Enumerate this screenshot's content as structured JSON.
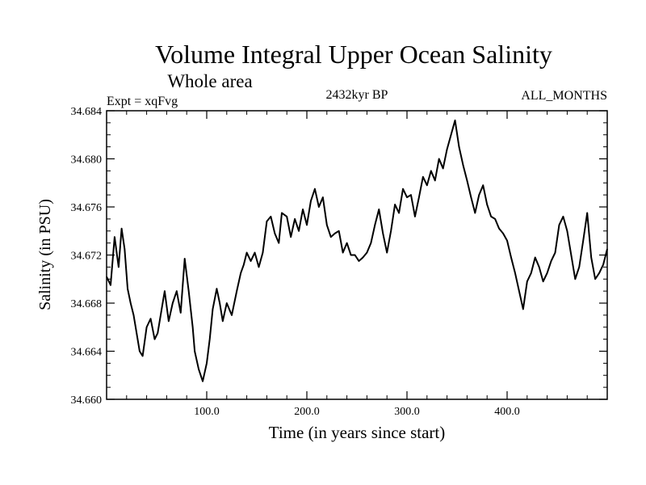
{
  "chart_data": {
    "type": "line",
    "title": "Volume Integral Upper Ocean Salinity",
    "subtitle": "Whole area",
    "experiment_label": "Expt = xqFvg",
    "period_label": "2432kyr BP",
    "months_label": "ALL_MONTHS",
    "xlabel": "Time (in years since start)",
    "ylabel": "Salinity (in PSU)",
    "xlim": [
      0,
      500
    ],
    "ylim": [
      34.66,
      34.684
    ],
    "x_ticks": [
      {
        "value": 100,
        "label": "100.0"
      },
      {
        "value": 200,
        "label": "200.0"
      },
      {
        "value": 300,
        "label": "300.0"
      },
      {
        "value": 400,
        "label": "400.0"
      }
    ],
    "y_ticks": [
      {
        "value": 34.66,
        "label": "34.660"
      },
      {
        "value": 34.664,
        "label": "34.664"
      },
      {
        "value": 34.668,
        "label": "34.668"
      },
      {
        "value": 34.672,
        "label": "34.672"
      },
      {
        "value": 34.676,
        "label": "34.676"
      },
      {
        "value": 34.68,
        "label": "34.680"
      },
      {
        "value": 34.684,
        "label": "34.684"
      }
    ],
    "x_minor_step": 20,
    "y_minor_step": 0.001,
    "grid": false,
    "series": [
      {
        "name": "salinity",
        "color": "#000000",
        "x": [
          0,
          4,
          8,
          12,
          15,
          18,
          21,
          24,
          27,
          30,
          33,
          36,
          40,
          44,
          48,
          51,
          55,
          58,
          62,
          66,
          70,
          74,
          78,
          82,
          86,
          88,
          92,
          96,
          100,
          103,
          106,
          110,
          113,
          116,
          120,
          125,
          130,
          134,
          137,
          140,
          144,
          148,
          152,
          156,
          160,
          164,
          168,
          172,
          175,
          180,
          184,
          188,
          192,
          196,
          200,
          204,
          208,
          212,
          216,
          220,
          224,
          228,
          232,
          236,
          240,
          244,
          248,
          252,
          256,
          260,
          264,
          268,
          272,
          276,
          280,
          284,
          288,
          292,
          296,
          300,
          304,
          308,
          312,
          316,
          320,
          324,
          328,
          332,
          336,
          340,
          344,
          348,
          352,
          356,
          360,
          364,
          368,
          372,
          376,
          380,
          384,
          388,
          392,
          396,
          400,
          404,
          408,
          412,
          416,
          420,
          424,
          428,
          432,
          436,
          440,
          444,
          448,
          452,
          456,
          460,
          464,
          468,
          472,
          476,
          480,
          484,
          488,
          492,
          496,
          500
        ],
        "values": [
          34.6702,
          34.6695,
          34.6735,
          34.671,
          34.6742,
          34.6725,
          34.6692,
          34.668,
          34.667,
          34.6655,
          34.664,
          34.6636,
          34.666,
          34.6667,
          34.665,
          34.6655,
          34.6675,
          34.669,
          34.6665,
          34.668,
          34.669,
          34.6672,
          34.6717,
          34.669,
          34.666,
          34.664,
          34.6625,
          34.6615,
          34.663,
          34.665,
          34.6675,
          34.6692,
          34.668,
          34.6665,
          34.668,
          34.667,
          34.669,
          34.6705,
          34.6712,
          34.6722,
          34.6715,
          34.6722,
          34.671,
          34.6722,
          34.6748,
          34.6752,
          34.6738,
          34.673,
          34.6755,
          34.6752,
          34.6735,
          34.675,
          34.674,
          34.6758,
          34.6745,
          34.6765,
          34.6775,
          34.676,
          34.6768,
          34.6745,
          34.6735,
          34.6738,
          34.674,
          34.6722,
          34.673,
          34.672,
          34.672,
          34.6715,
          34.6718,
          34.6722,
          34.673,
          34.6745,
          34.6758,
          34.6738,
          34.6722,
          34.674,
          34.6762,
          34.6755,
          34.6775,
          34.6768,
          34.677,
          34.6752,
          34.6768,
          34.6785,
          34.6778,
          34.679,
          34.6782,
          34.68,
          34.6792,
          34.6808,
          34.682,
          34.6832,
          34.681,
          34.6795,
          34.6782,
          34.6768,
          34.6755,
          34.677,
          34.6778,
          34.6762,
          34.6752,
          34.675,
          34.6742,
          34.6738,
          34.6732,
          34.6718,
          34.6705,
          34.669,
          34.6675,
          34.6698,
          34.6705,
          34.6718,
          34.671,
          34.6698,
          34.6705,
          34.6715,
          34.6722,
          34.6745,
          34.6752,
          34.674,
          34.672,
          34.67,
          34.671,
          34.6732,
          34.6755,
          34.6718,
          34.67,
          34.6705,
          34.6712,
          34.6725
        ]
      }
    ]
  }
}
